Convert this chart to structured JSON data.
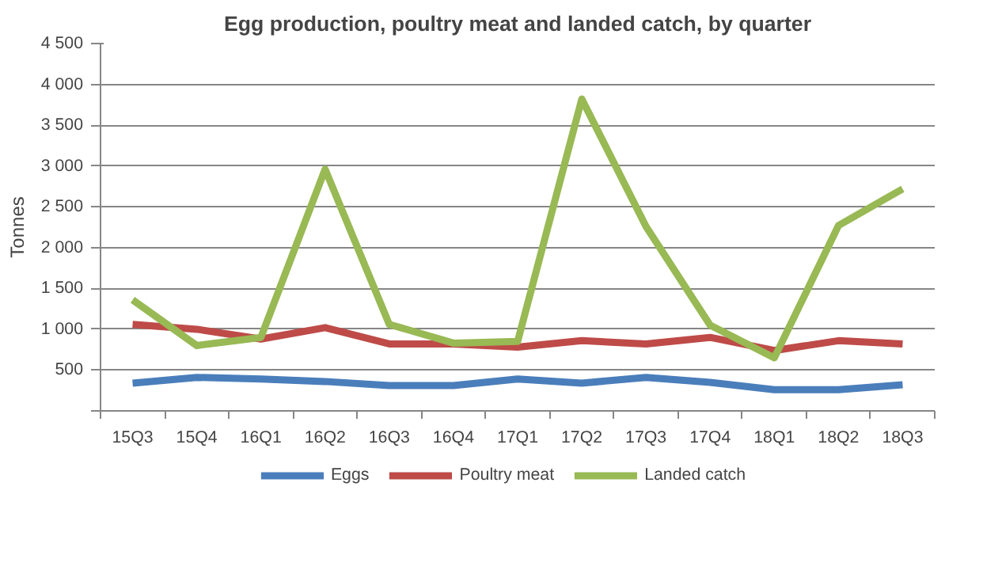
{
  "chart_data": {
    "type": "line",
    "title": "Egg production, poultry meat and landed catch, by quarter",
    "ylabel": "Tonnes",
    "categories": [
      "15Q3",
      "15Q4",
      "16Q1",
      "16Q2",
      "16Q3",
      "16Q4",
      "17Q1",
      "17Q2",
      "17Q3",
      "17Q4",
      "18Q1",
      "18Q2",
      "18Q3"
    ],
    "series": [
      {
        "name": "Eggs",
        "color": "#4a7ebb",
        "values": [
          340,
          410,
          390,
          360,
          310,
          310,
          390,
          340,
          410,
          350,
          260,
          260,
          320
        ]
      },
      {
        "name": "Poultry meat",
        "color": "#be4b48",
        "values": [
          1060,
          1000,
          880,
          1020,
          820,
          820,
          780,
          860,
          820,
          900,
          740,
          860,
          820
        ]
      },
      {
        "name": "Landed catch",
        "color": "#98b954",
        "values": [
          1360,
          800,
          900,
          2960,
          1060,
          830,
          850,
          3820,
          2260,
          1050,
          650,
          2270,
          2720
        ]
      }
    ],
    "ylim": [
      0,
      4500
    ],
    "yticks": [
      {
        "value": 0,
        "label": null
      },
      {
        "value": 500,
        "label": "500"
      },
      {
        "value": 1000,
        "label": "1 000"
      },
      {
        "value": 1500,
        "label": "1 500"
      },
      {
        "value": 2000,
        "label": "2 000"
      },
      {
        "value": 2500,
        "label": "2 500"
      },
      {
        "value": 3000,
        "label": "3 000"
      },
      {
        "value": 3500,
        "label": "3 500"
      },
      {
        "value": 4000,
        "label": "4 000"
      },
      {
        "value": 4500,
        "label": "4 500"
      }
    ],
    "grid": "y",
    "legend": "bottom",
    "marker": "none",
    "line_style": "solid"
  }
}
